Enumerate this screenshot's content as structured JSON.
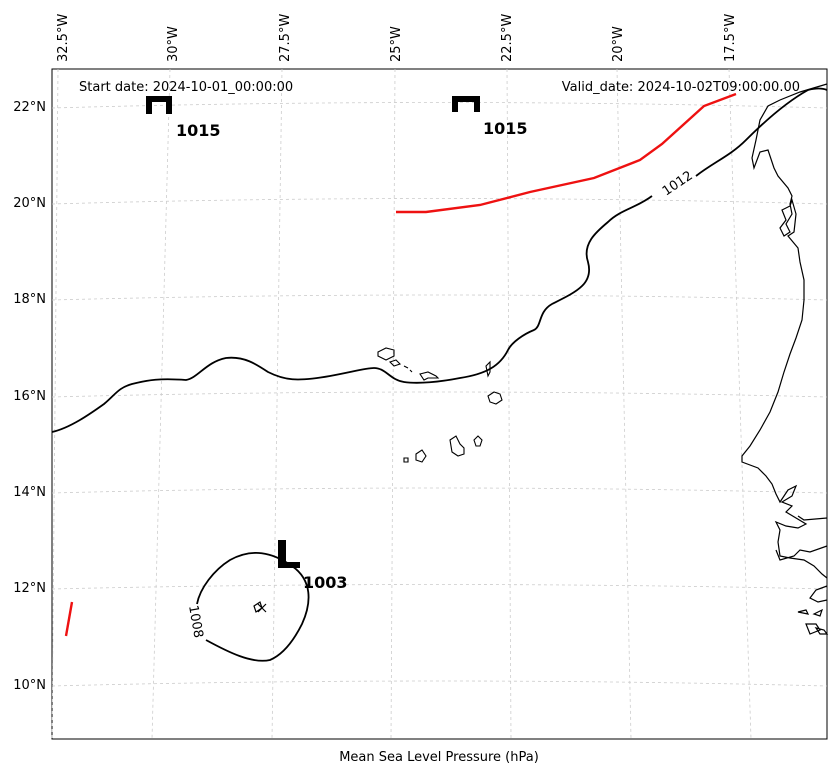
{
  "map": {
    "start_date": "Start date: 2024-10-01_00:00:00",
    "valid_date": "Valid_date: 2024-10-02T09:00:00.00",
    "xlabel": "Mean Sea Level Pressure (hPa)",
    "lon_labels": [
      "32.5°W",
      "30°W",
      "27.5°W",
      "25°W",
      "22.5°W",
      "20°W",
      "17.5°W"
    ],
    "lat_labels": [
      "22°N",
      "20°N",
      "18°N",
      "16°N",
      "14°N",
      "12°N",
      "10°N"
    ],
    "pressure_centers": [
      {
        "type": "H",
        "value": "1015"
      },
      {
        "type": "H",
        "value": "1015"
      },
      {
        "type": "L",
        "value": "1003"
      }
    ],
    "isobars": [
      {
        "value": "1012",
        "color": "#000000"
      },
      {
        "value": "1008",
        "color": "#000000"
      }
    ],
    "front_color": "#ee1111",
    "coastline_color": "#000000",
    "grid": true
  }
}
